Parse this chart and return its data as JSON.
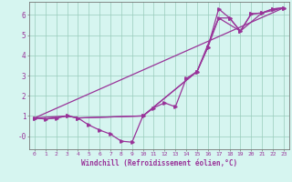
{
  "xlabel": "Windchill (Refroidissement éolien,°C)",
  "background_color": "#d6f5f0",
  "grid_color": "#99ccbb",
  "line_color": "#993399",
  "spine_color": "#777777",
  "xlim": [
    -0.5,
    23.5
  ],
  "ylim": [
    -0.65,
    6.65
  ],
  "xticks": [
    0,
    1,
    2,
    3,
    4,
    5,
    6,
    7,
    8,
    9,
    10,
    11,
    12,
    13,
    14,
    15,
    16,
    17,
    18,
    19,
    20,
    21,
    22,
    23
  ],
  "yticks": [
    0,
    1,
    2,
    3,
    4,
    5,
    6
  ],
  "ytick_labels": [
    "-0",
    "1",
    "2",
    "3",
    "4",
    "5",
    "6"
  ],
  "line1_x": [
    0,
    1,
    2,
    3,
    4,
    5,
    6,
    7,
    8,
    9,
    10,
    11,
    12,
    13,
    14,
    15,
    16,
    17,
    18,
    19,
    20,
    21,
    22,
    23
  ],
  "line1_y": [
    0.9,
    0.85,
    0.9,
    1.0,
    0.9,
    0.55,
    0.3,
    0.1,
    -0.25,
    -0.3,
    1.0,
    1.4,
    1.65,
    1.45,
    2.85,
    3.2,
    4.4,
    6.3,
    5.85,
    5.2,
    6.05,
    6.1,
    6.3,
    6.35
  ],
  "line2_x": [
    0,
    3,
    4,
    10,
    15,
    16,
    17,
    18,
    19,
    20,
    21,
    22,
    23
  ],
  "line2_y": [
    0.9,
    1.0,
    0.9,
    1.0,
    3.2,
    4.4,
    5.85,
    5.85,
    5.2,
    6.05,
    6.1,
    6.3,
    6.35
  ],
  "line3_x": [
    0,
    23
  ],
  "line3_y": [
    0.9,
    6.35
  ],
  "line4_x": [
    0,
    1,
    2,
    3,
    4,
    10,
    15,
    17,
    19,
    21,
    23
  ],
  "line4_y": [
    0.9,
    0.85,
    0.9,
    1.0,
    0.9,
    1.0,
    3.2,
    5.85,
    5.2,
    6.1,
    6.35
  ]
}
